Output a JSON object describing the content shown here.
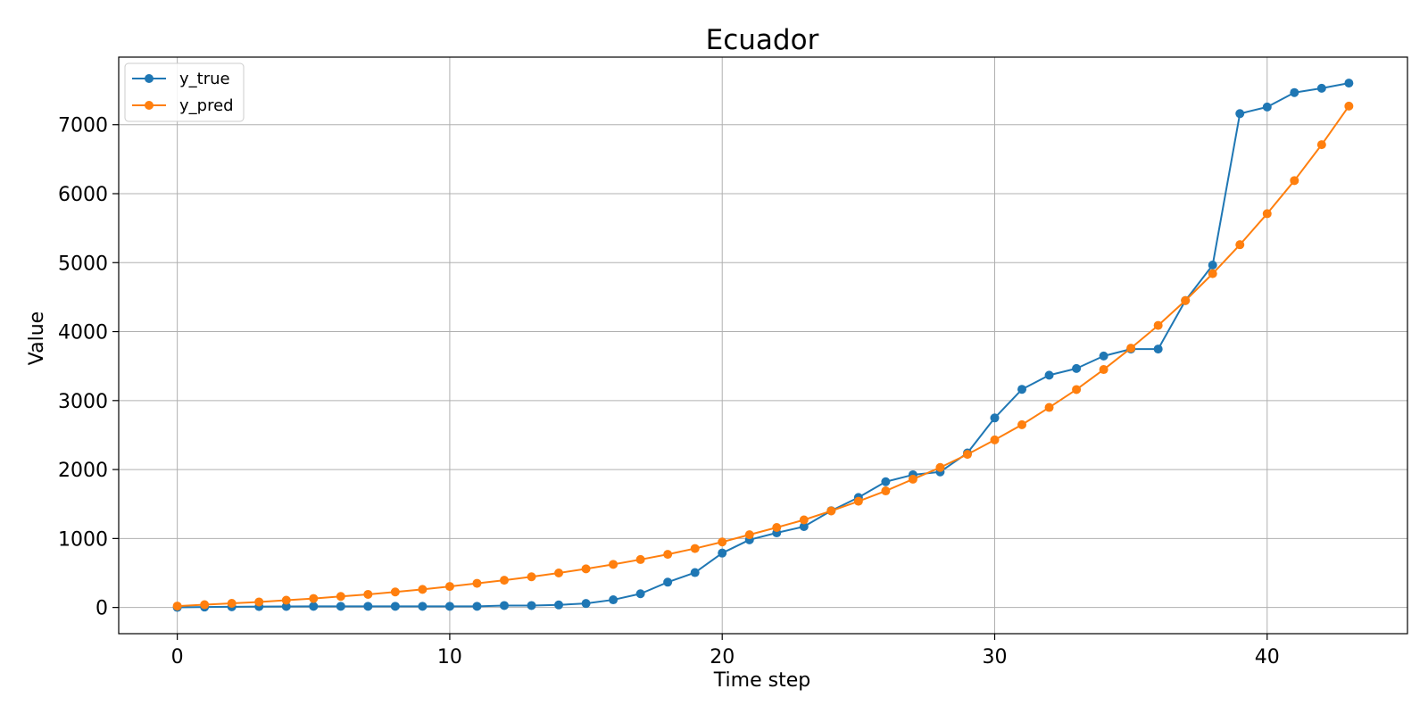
{
  "chart_data": {
    "type": "line",
    "title": "Ecuador",
    "xlabel": "Time step",
    "ylabel": "Value",
    "xlim": [
      -2.15,
      45.15
    ],
    "ylim": [
      -380,
      7980
    ],
    "xticks": [
      0,
      10,
      20,
      30,
      40
    ],
    "yticks": [
      0,
      1000,
      2000,
      3000,
      4000,
      5000,
      6000,
      7000
    ],
    "grid": true,
    "legend_position": "top-left",
    "x": [
      0,
      1,
      2,
      3,
      4,
      5,
      6,
      7,
      8,
      9,
      10,
      11,
      12,
      13,
      14,
      15,
      16,
      17,
      18,
      19,
      20,
      21,
      22,
      23,
      24,
      25,
      26,
      27,
      28,
      29,
      30,
      31,
      32,
      33,
      34,
      35,
      36,
      37,
      38,
      39,
      40,
      41,
      42,
      43
    ],
    "series": [
      {
        "name": "y_true",
        "color": "#1f77b4",
        "values": [
          1,
          6,
          10,
          13,
          15,
          17,
          17,
          17,
          17,
          17,
          17,
          17,
          28,
          28,
          37,
          58,
          111,
          199,
          367,
          506,
          789,
          981,
          1082,
          1173,
          1403,
          1595,
          1823,
          1924,
          1966,
          2240,
          2748,
          3163,
          3368,
          3465,
          3646,
          3747,
          3747,
          4450,
          4965,
          7161,
          7257,
          7466,
          7529,
          7603
        ]
      },
      {
        "name": "y_pred",
        "color": "#ff7f0e",
        "values": [
          20,
          40,
          60,
          80,
          105,
          130,
          160,
          190,
          225,
          262,
          305,
          350,
          395,
          445,
          500,
          560,
          625,
          695,
          770,
          855,
          950,
          1055,
          1160,
          1270,
          1400,
          1540,
          1690,
          1860,
          2030,
          2220,
          2430,
          2650,
          2900,
          3160,
          3450,
          3760,
          4090,
          4450,
          4840,
          5260,
          5710,
          6190,
          6710,
          7270
        ]
      }
    ]
  }
}
